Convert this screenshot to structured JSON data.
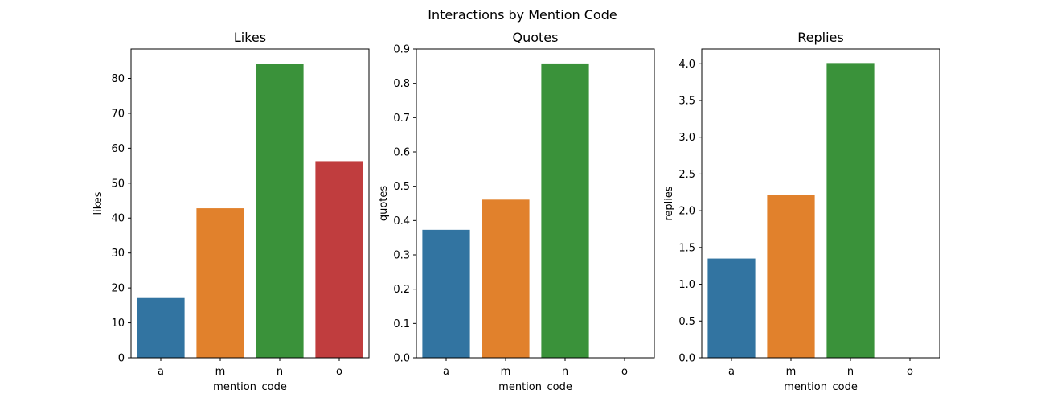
{
  "figure": {
    "suptitle": "Interactions by Mention Code"
  },
  "chart_data": [
    {
      "type": "bar",
      "title": "Likes",
      "xlabel": "mention_code",
      "ylabel": "likes",
      "categories": [
        "a",
        "m",
        "n",
        "o"
      ],
      "values": [
        17.1,
        42.8,
        84.2,
        56.3
      ],
      "colors": [
        "#3274a1",
        "#e1812c",
        "#3a923a",
        "#c03d3e"
      ],
      "ylim": [
        0,
        88.4
      ],
      "yticks": [
        0,
        10,
        20,
        30,
        40,
        50,
        60,
        70,
        80
      ],
      "ytick_labels": [
        "0",
        "10",
        "20",
        "30",
        "40",
        "50",
        "60",
        "70",
        "80"
      ],
      "grid": false,
      "legend": "none"
    },
    {
      "type": "bar",
      "title": "Quotes",
      "xlabel": "mention_code",
      "ylabel": "quotes",
      "categories": [
        "a",
        "m",
        "n",
        "o"
      ],
      "values": [
        0.373,
        0.461,
        0.858,
        0
      ],
      "colors": [
        "#3274a1",
        "#e1812c",
        "#3a923a",
        "#c03d3e"
      ],
      "ylim": [
        0,
        0.9
      ],
      "yticks": [
        0,
        0.1,
        0.2,
        0.3,
        0.4,
        0.5,
        0.6,
        0.7,
        0.8,
        0.9
      ],
      "ytick_labels": [
        "0.0",
        "0.1",
        "0.2",
        "0.3",
        "0.4",
        "0.5",
        "0.6",
        "0.7",
        "0.8",
        "0.9"
      ],
      "grid": false,
      "legend": "none"
    },
    {
      "type": "bar",
      "title": "Replies",
      "xlabel": "mention_code",
      "ylabel": "replies",
      "categories": [
        "a",
        "m",
        "n",
        "o"
      ],
      "values": [
        1.35,
        2.22,
        4.01,
        0
      ],
      "colors": [
        "#3274a1",
        "#e1812c",
        "#3a923a",
        "#c03d3e"
      ],
      "ylim": [
        0,
        4.2
      ],
      "yticks": [
        0,
        0.5,
        1,
        1.5,
        2,
        2.5,
        3,
        3.5,
        4
      ],
      "ytick_labels": [
        "0.0",
        "0.5",
        "1.0",
        "1.5",
        "2.0",
        "2.5",
        "3.0",
        "3.5",
        "4.0"
      ],
      "grid": false,
      "legend": "none"
    }
  ]
}
